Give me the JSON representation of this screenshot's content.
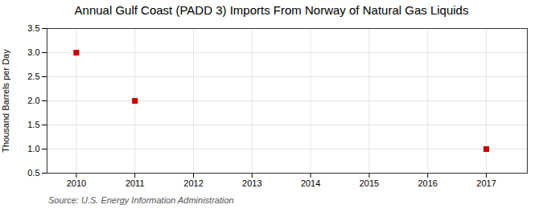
{
  "chart_data": {
    "type": "scatter",
    "title": "Annual Gulf Coast (PADD 3) Imports From Norway of Natural Gas Liquids",
    "y_label": "Thousand Barrels per Day",
    "source": "Source: U.S. Energy Information Administration",
    "x": [
      2010,
      2011,
      2017
    ],
    "values": [
      3.0,
      2.0,
      1.0
    ],
    "color": "#cc0000",
    "marker": "square",
    "xlim": [
      2009.5,
      2017.7
    ],
    "ylim": [
      0.5,
      3.5
    ],
    "xticks": [
      2010,
      2011,
      2012,
      2013,
      2014,
      2015,
      2016,
      2017
    ],
    "yticks": [
      0.5,
      {
        "value": 1.0,
        "label": "1.0"
      },
      1.5,
      {
        "value": 2.0,
        "label": "2.0"
      },
      2.5,
      {
        "value": 3.0,
        "label": "3.0"
      },
      3.5
    ],
    "grid": true
  }
}
